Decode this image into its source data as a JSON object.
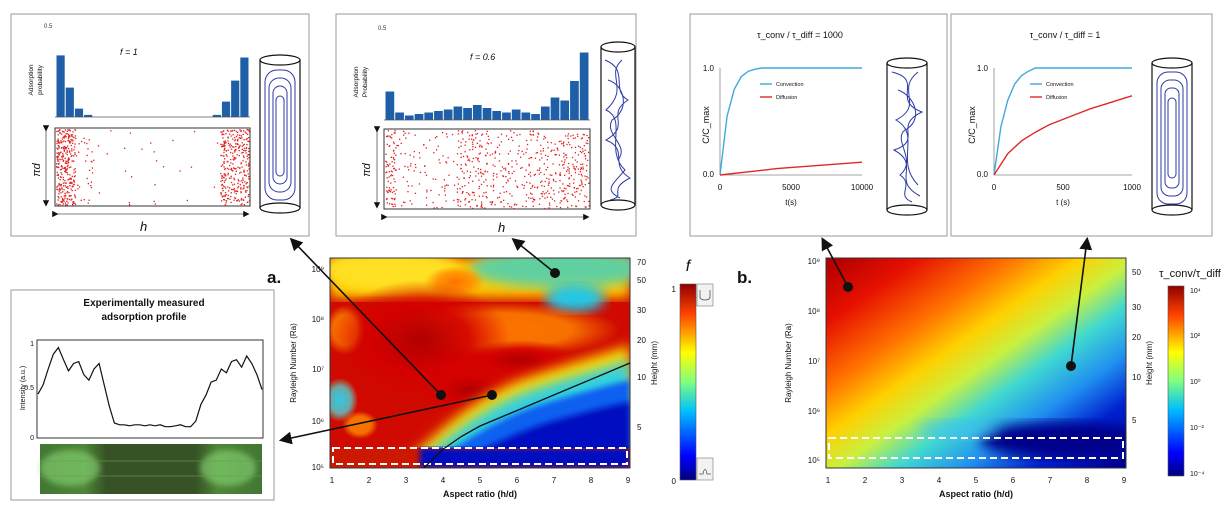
{
  "colors": {
    "bar": "#1f5fa8",
    "scatter": "#e02020",
    "convection": "#3fa9dd",
    "diffusion": "#e02828",
    "cylinder": "#2b3aa6",
    "arrow": "#111111",
    "panel_border": "#999999"
  },
  "labels": {
    "panel_a": "a.",
    "panel_b": "b.",
    "f_symbol": "f",
    "tau_ratio": "τ_conv/τ_diff"
  },
  "profile_panel": {
    "title_line1": "Experimentally measured",
    "title_line2": "adsorption profile",
    "ylabel": "Intensity (a.u.)",
    "y_ticks": [
      "1",
      "0.5",
      "0"
    ],
    "profile": [
      0.45,
      0.55,
      0.72,
      0.88,
      0.95,
      0.82,
      0.7,
      0.78,
      0.8,
      0.66,
      0.6,
      0.72,
      0.78,
      0.55,
      0.32,
      0.14,
      0.12,
      0.12,
      0.11,
      0.12,
      0.12,
      0.11,
      0.12,
      0.11,
      0.12,
      0.1,
      0.1,
      0.11,
      0.12,
      0.1,
      0.1,
      0.16,
      0.34,
      0.44,
      0.58,
      0.6,
      0.72,
      0.68,
      0.8,
      0.82,
      0.74,
      0.86,
      0.78,
      0.66,
      0.5
    ]
  },
  "inset_f1": {
    "label": "f = 1",
    "ylabel_line1": "Adsorption",
    "ylabel_line2": "probability",
    "y_tick": "0.5",
    "bars": [
      0.88,
      0.42,
      0.12,
      0.03,
      0,
      0,
      0,
      0,
      0,
      0,
      0,
      0,
      0,
      0,
      0,
      0,
      0,
      0.03,
      0.22,
      0.52,
      0.85
    ],
    "y_axis_label": "πd",
    "x_axis_label": "h"
  },
  "inset_f06": {
    "label": "f = 0.6",
    "ylabel_line1": "Adsorption",
    "ylabel_line2": "Probability",
    "y_tick": "0.5",
    "bars": [
      0.38,
      0.1,
      0.06,
      0.08,
      0.1,
      0.12,
      0.14,
      0.18,
      0.16,
      0.2,
      0.16,
      0.12,
      0.1,
      0.14,
      0.1,
      0.08,
      0.18,
      0.3,
      0.26,
      0.52,
      0.9
    ],
    "y_axis_label": "πd",
    "x_axis_label": "h"
  },
  "inset_ratio1000": {
    "title": "τ_conv / τ_diff = 1000",
    "ylabel": "C/C_max",
    "xlabel": "t(s)",
    "y_ticks": [
      "1.0",
      "0.0"
    ],
    "x_ticks": [
      "0",
      "5000",
      "10000"
    ],
    "legend": [
      "Convection",
      "Diffusion"
    ]
  },
  "inset_ratio1": {
    "title": "τ_conv / τ_diff = 1",
    "ylabel": "C/C_max",
    "xlabel": "t (s)",
    "y_ticks": [
      "1.0",
      "0.0"
    ],
    "x_ticks": [
      "0",
      "500",
      "1000"
    ],
    "legend": [
      "Convection",
      "Diffusion"
    ]
  },
  "chart_data": [
    {
      "type": "heatmap",
      "title": "",
      "xlabel": "Aspect ratio (h/d)",
      "ylabel": "Rayleigh Number (Ra)",
      "y2label": "Height (mm)",
      "x_ticks": [
        "1",
        "2",
        "3",
        "4",
        "5",
        "6",
        "7",
        "8",
        "9"
      ],
      "y_ticks": [
        "10⁵",
        "10⁶",
        "10⁷",
        "10⁸",
        "10⁹"
      ],
      "y2_ticks": [
        "70",
        "50",
        "30",
        "20",
        "10",
        "5"
      ],
      "xlim": [
        1,
        9
      ],
      "colorbar": {
        "label": "f",
        "ticks": [
          "1",
          "0"
        ]
      },
      "boundary_curve": {
        "x": [
          3.5,
          4.0,
          4.5,
          5.0,
          5.5,
          6.0,
          6.5,
          7.0,
          7.5,
          8.0,
          8.5,
          9.0
        ],
        "y_ra_log10": [
          5.0,
          5.35,
          5.6,
          5.8,
          5.95,
          6.1,
          6.25,
          6.4,
          6.55,
          6.7,
          6.85,
          7.0
        ]
      }
    },
    {
      "type": "heatmap",
      "title": "",
      "xlabel": "Aspect ratio (h/d)",
      "ylabel": "Rayleigh Number (Ra)",
      "y2label": "Height (mm)",
      "x_ticks": [
        "1",
        "2",
        "3",
        "4",
        "5",
        "6",
        "7",
        "8",
        "9"
      ],
      "y_ticks": [
        "10⁵",
        "10⁶",
        "10⁷",
        "10⁸",
        "10⁹"
      ],
      "y2_ticks": [
        "50",
        "30",
        "20",
        "10",
        "5"
      ],
      "xlim": [
        1,
        9
      ],
      "colorbar": {
        "label": "τ_conv/τ_diff",
        "ticks": [
          "10⁴",
          "10²",
          "10⁰",
          "10⁻²",
          "10⁻⁴"
        ]
      }
    },
    {
      "type": "line",
      "title": "τ_conv / τ_diff = 1000",
      "xlabel": "t(s)",
      "ylabel": "C/C_max",
      "xlim": [
        0,
        10000
      ],
      "ylim": [
        0,
        1
      ],
      "series": [
        {
          "name": "Convection",
          "x": [
            0,
            500,
            1000,
            1500,
            2000,
            2500,
            3000,
            4000,
            6000,
            8000,
            10000
          ],
          "values": [
            0,
            0.55,
            0.8,
            0.92,
            0.97,
            0.99,
            1,
            1,
            1,
            1,
            1
          ]
        },
        {
          "name": "Diffusion",
          "x": [
            0,
            2000,
            4000,
            6000,
            8000,
            10000
          ],
          "values": [
            0,
            0.03,
            0.06,
            0.08,
            0.1,
            0.12
          ]
        }
      ]
    },
    {
      "type": "line",
      "title": "τ_conv / τ_diff = 1",
      "xlabel": "t (s)",
      "ylabel": "C/C_max",
      "xlim": [
        0,
        1000
      ],
      "ylim": [
        0,
        1
      ],
      "series": [
        {
          "name": "Convection",
          "x": [
            0,
            50,
            100,
            150,
            200,
            250,
            300,
            400,
            600,
            800,
            1000
          ],
          "values": [
            0,
            0.45,
            0.7,
            0.85,
            0.93,
            0.97,
            1,
            1,
            1,
            1,
            1
          ]
        },
        {
          "name": "Diffusion",
          "x": [
            0,
            100,
            200,
            300,
            400,
            500,
            600,
            700,
            800,
            900,
            1000
          ],
          "values": [
            0,
            0.2,
            0.32,
            0.4,
            0.47,
            0.52,
            0.57,
            0.62,
            0.66,
            0.7,
            0.74
          ]
        }
      ]
    }
  ]
}
